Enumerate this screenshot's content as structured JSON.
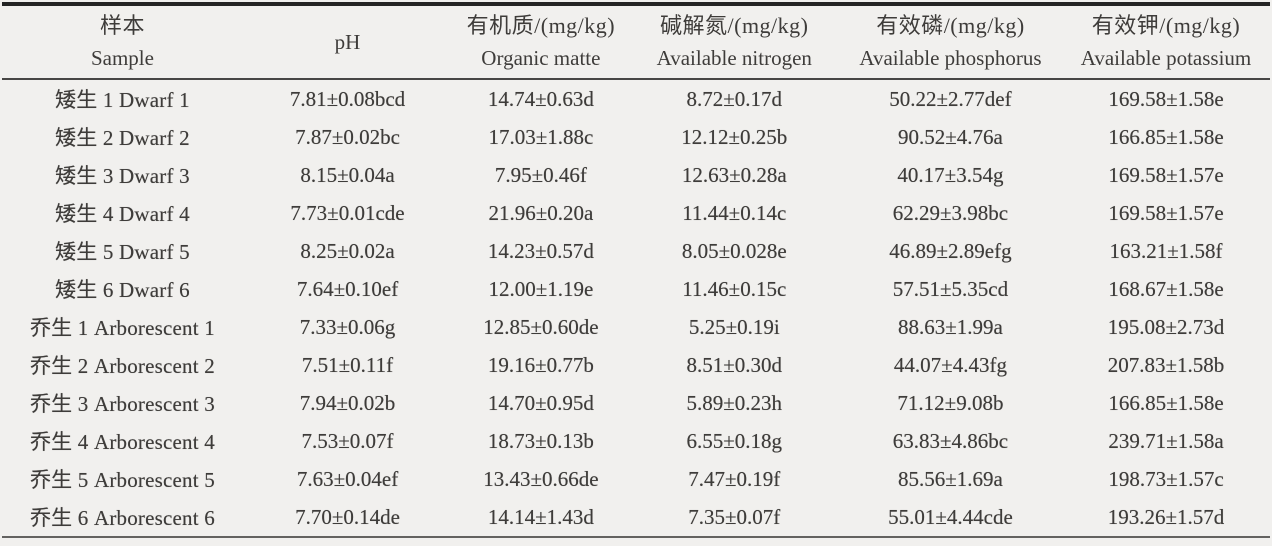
{
  "table": {
    "columns": [
      {
        "zh": "样本",
        "en": "Sample"
      },
      {
        "zh": "pH",
        "en": ""
      },
      {
        "zh": "有机质/(mg/kg)",
        "en": "Organic matte"
      },
      {
        "zh": "碱解氮/(mg/kg)",
        "en": "Available nitrogen"
      },
      {
        "zh": "有效磷/(mg/kg)",
        "en": "Available phosphorus"
      },
      {
        "zh": "有效钾/(mg/kg)",
        "en": "Available potassium"
      }
    ],
    "rows": [
      {
        "sample": "矮生 1 Dwarf 1",
        "ph": "7.81±0.08bcd",
        "organic": "14.74±0.63d",
        "nitrogen": "8.72±0.17d",
        "phosphorus": "50.22±2.77def",
        "potassium": "169.58±1.58e"
      },
      {
        "sample": "矮生 2 Dwarf 2",
        "ph": "7.87±0.02bc",
        "organic": "17.03±1.88c",
        "nitrogen": "12.12±0.25b",
        "phosphorus": "90.52±4.76a",
        "potassium": "166.85±1.58e"
      },
      {
        "sample": "矮生 3 Dwarf 3",
        "ph": "8.15±0.04a",
        "organic": "7.95±0.46f",
        "nitrogen": "12.63±0.28a",
        "phosphorus": "40.17±3.54g",
        "potassium": "169.58±1.57e"
      },
      {
        "sample": "矮生 4 Dwarf 4",
        "ph": "7.73±0.01cde",
        "organic": "21.96±0.20a",
        "nitrogen": "11.44±0.14c",
        "phosphorus": "62.29±3.98bc",
        "potassium": "169.58±1.57e"
      },
      {
        "sample": "矮生 5 Dwarf 5",
        "ph": "8.25±0.02a",
        "organic": "14.23±0.57d",
        "nitrogen": "8.05±0.028e",
        "phosphorus": "46.89±2.89efg",
        "potassium": "163.21±1.58f"
      },
      {
        "sample": "矮生 6 Dwarf 6",
        "ph": "7.64±0.10ef",
        "organic": "12.00±1.19e",
        "nitrogen": "11.46±0.15c",
        "phosphorus": "57.51±5.35cd",
        "potassium": "168.67±1.58e"
      },
      {
        "sample": "乔生 1 Arborescent 1",
        "ph": "7.33±0.06g",
        "organic": "12.85±0.60de",
        "nitrogen": "5.25±0.19i",
        "phosphorus": "88.63±1.99a",
        "potassium": "195.08±2.73d"
      },
      {
        "sample": "乔生 2 Arborescent 2",
        "ph": "7.51±0.11f",
        "organic": "19.16±0.77b",
        "nitrogen": "8.51±0.30d",
        "phosphorus": "44.07±4.43fg",
        "potassium": "207.83±1.58b"
      },
      {
        "sample": "乔生 3 Arborescent 3",
        "ph": "7.94±0.02b",
        "organic": "14.70±0.95d",
        "nitrogen": "5.89±0.23h",
        "phosphorus": "71.12±9.08b",
        "potassium": "166.85±1.58e"
      },
      {
        "sample": "乔生 4 Arborescent 4",
        "ph": "7.53±0.07f",
        "organic": "18.73±0.13b",
        "nitrogen": "6.55±0.18g",
        "phosphorus": "63.83±4.86bc",
        "potassium": "239.71±1.58a"
      },
      {
        "sample": "乔生 5 Arborescent 5",
        "ph": "7.63±0.04ef",
        "organic": "13.43±0.66de",
        "nitrogen": "7.47±0.19f",
        "phosphorus": "85.56±1.69a",
        "potassium": "198.73±1.57c"
      },
      {
        "sample": "乔生 6 Arborescent 6",
        "ph": "7.70±0.14de",
        "organic": "14.14±1.43d",
        "nitrogen": "7.35±0.07f",
        "phosphorus": "55.01±4.44cde",
        "potassium": "193.26±1.57d"
      }
    ]
  }
}
